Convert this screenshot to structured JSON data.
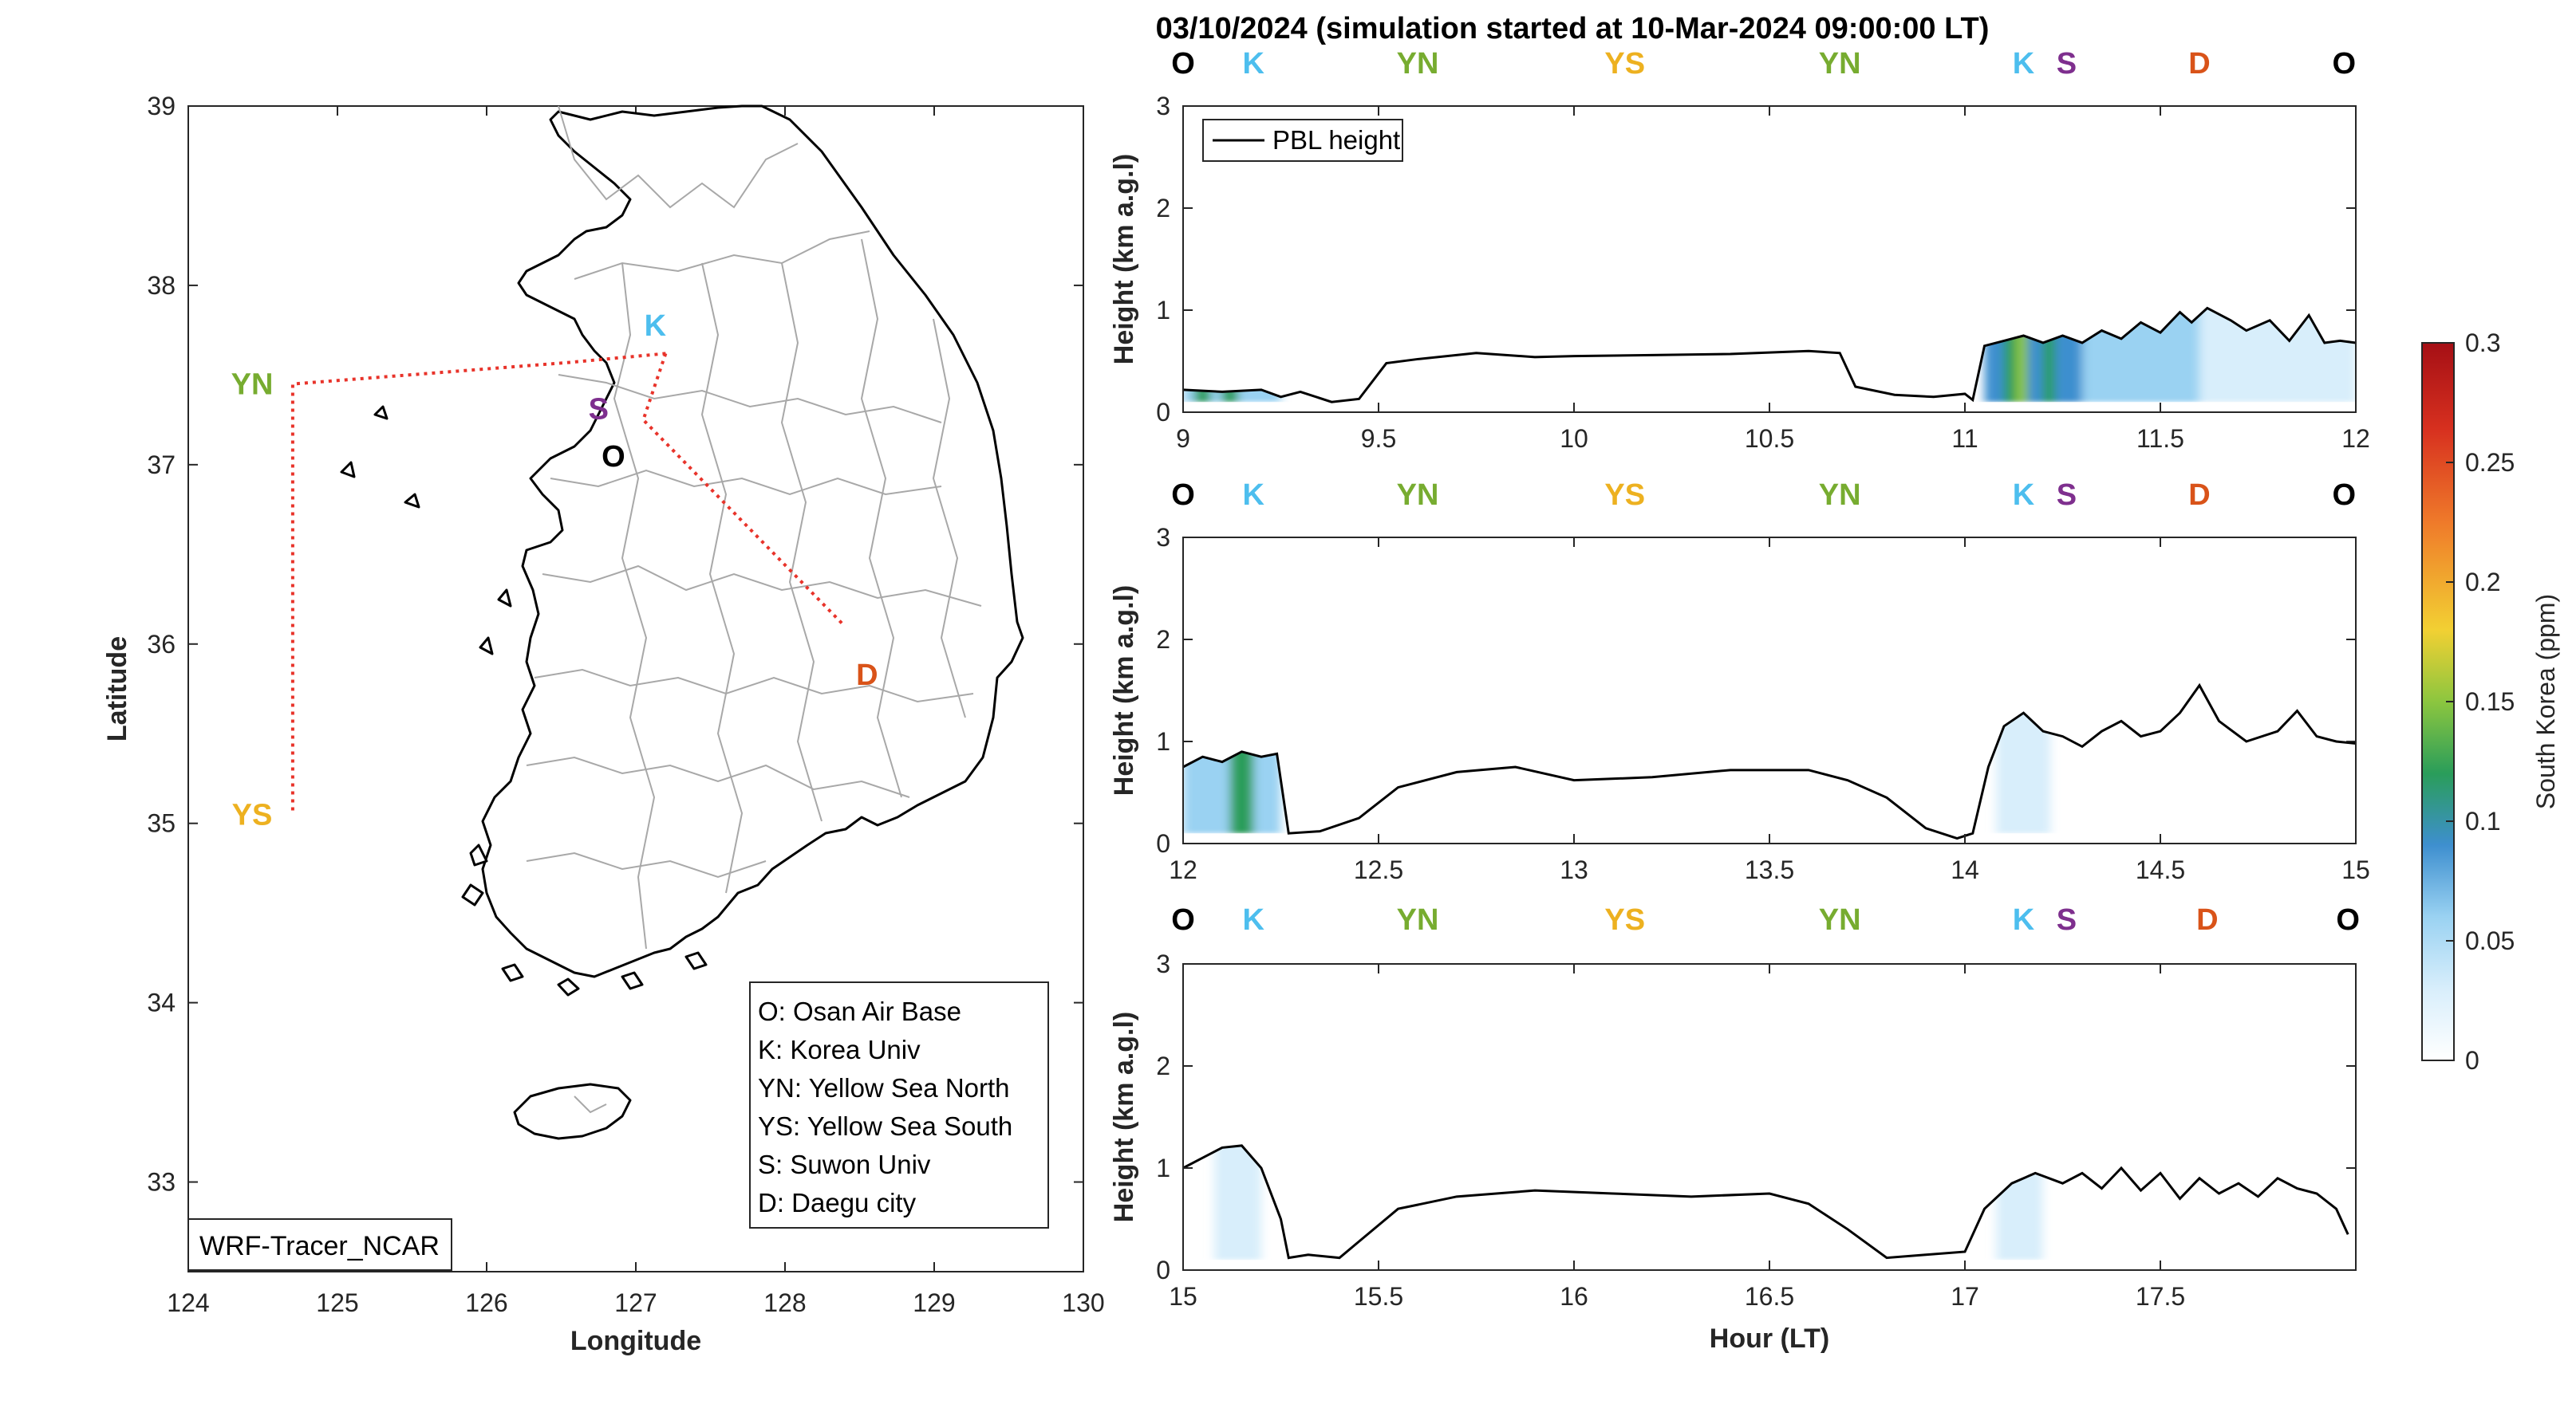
{
  "figure_title": "03/10/2024 (simulation started at 10-Mar-2024 09:00:00 LT)",
  "colors": {
    "O": "#000000",
    "K": "#4DBEEE",
    "YN": "#77AC30",
    "YS": "#EDB120",
    "S": "#7E2F8E",
    "D": "#D95319",
    "route": "#E8332A"
  },
  "chart_data": [
    {
      "type": "map",
      "xlabel": "Longitude",
      "ylabel": "Latitude",
      "xlim": [
        124,
        130
      ],
      "ylim": [
        32.5,
        39
      ],
      "xticks": [
        "124",
        "125",
        "126",
        "127",
        "128",
        "129",
        "130"
      ],
      "yticks": [
        "33",
        "34",
        "35",
        "36",
        "37",
        "38",
        "39"
      ],
      "model_label": "WRF-Tracer_NCAR",
      "stations": [
        {
          "code": "O",
          "lon": 126.85,
          "lat": 37.08
        },
        {
          "code": "K",
          "lon": 127.13,
          "lat": 37.71
        },
        {
          "code": "S",
          "lon": 126.75,
          "lat": 37.3
        },
        {
          "code": "D",
          "lon": 128.55,
          "lat": 35.87
        },
        {
          "code": "YN",
          "lon": 124.0,
          "lat": 37.45
        },
        {
          "code": "YS",
          "lon": 124.0,
          "lat": 35.05
        }
      ],
      "route": [
        [
          127.2,
          37.62
        ],
        [
          126.55,
          37.57
        ],
        [
          124.7,
          37.45
        ],
        [
          124.7,
          35.05
        ]
      ],
      "route2": [
        [
          127.2,
          37.62
        ],
        [
          127.05,
          37.25
        ],
        [
          128.4,
          36.1
        ]
      ],
      "legend": [
        "O: Osan Air Base",
        "K: Korea Univ",
        "YN: Yellow Sea North",
        "YS: Yellow Sea South",
        "S: Suwon Univ",
        "D: Daegu city"
      ]
    },
    {
      "type": "heatmap",
      "ylabel": "Height (km a.g.l)",
      "xlim": [
        9,
        12
      ],
      "ylim": [
        0,
        3
      ],
      "xticks": [
        "9",
        "9.5",
        "10",
        "10.5",
        "11",
        "11.5",
        "12"
      ],
      "yticks": [
        "0",
        "1",
        "2",
        "3"
      ],
      "legend": [
        "PBL height"
      ],
      "top_labels": [
        {
          "code": "O",
          "x": 9.0
        },
        {
          "code": "K",
          "x": 9.18
        },
        {
          "code": "YN",
          "x": 9.6
        },
        {
          "code": "YS",
          "x": 10.13
        },
        {
          "code": "YN",
          "x": 10.68
        },
        {
          "code": "K",
          "x": 11.15
        },
        {
          "code": "S",
          "x": 11.26
        },
        {
          "code": "D",
          "x": 11.6
        },
        {
          "code": "O",
          "x": 11.97
        }
      ],
      "pbl_height": [
        [
          9.0,
          0.22
        ],
        [
          9.1,
          0.2
        ],
        [
          9.2,
          0.22
        ],
        [
          9.25,
          0.15
        ],
        [
          9.3,
          0.2
        ],
        [
          9.38,
          0.1
        ],
        [
          9.45,
          0.13
        ],
        [
          9.52,
          0.48
        ],
        [
          9.6,
          0.52
        ],
        [
          9.75,
          0.58
        ],
        [
          9.9,
          0.54
        ],
        [
          10.0,
          0.55
        ],
        [
          10.2,
          0.56
        ],
        [
          10.4,
          0.57
        ],
        [
          10.6,
          0.6
        ],
        [
          10.68,
          0.58
        ],
        [
          10.72,
          0.25
        ],
        [
          10.82,
          0.17
        ],
        [
          10.92,
          0.15
        ],
        [
          11.0,
          0.18
        ],
        [
          11.02,
          0.12
        ],
        [
          11.05,
          0.65
        ],
        [
          11.1,
          0.7
        ],
        [
          11.15,
          0.75
        ],
        [
          11.2,
          0.68
        ],
        [
          11.25,
          0.75
        ],
        [
          11.3,
          0.68
        ],
        [
          11.35,
          0.8
        ],
        [
          11.4,
          0.72
        ],
        [
          11.45,
          0.88
        ],
        [
          11.5,
          0.78
        ],
        [
          11.55,
          0.98
        ],
        [
          11.58,
          0.88
        ],
        [
          11.62,
          1.02
        ],
        [
          11.68,
          0.9
        ],
        [
          11.72,
          0.8
        ],
        [
          11.78,
          0.9
        ],
        [
          11.83,
          0.7
        ],
        [
          11.88,
          0.95
        ],
        [
          11.92,
          0.68
        ],
        [
          11.96,
          0.7
        ],
        [
          12.0,
          0.68
        ]
      ]
    },
    {
      "type": "heatmap",
      "ylabel": "Height (km a.g.l)",
      "xlim": [
        12,
        15
      ],
      "ylim": [
        0,
        3
      ],
      "xticks": [
        "12",
        "12.5",
        "13",
        "13.5",
        "14",
        "14.5",
        "15"
      ],
      "yticks": [
        "0",
        "1",
        "2",
        "3"
      ],
      "top_labels": [
        {
          "code": "O",
          "x": 12.0
        },
        {
          "code": "K",
          "x": 12.18
        },
        {
          "code": "YN",
          "x": 12.6
        },
        {
          "code": "YS",
          "x": 13.13
        },
        {
          "code": "YN",
          "x": 13.68
        },
        {
          "code": "K",
          "x": 14.15
        },
        {
          "code": "S",
          "x": 14.26
        },
        {
          "code": "D",
          "x": 14.6
        },
        {
          "code": "O",
          "x": 14.97
        }
      ],
      "pbl_height": [
        [
          12.0,
          0.75
        ],
        [
          12.05,
          0.85
        ],
        [
          12.1,
          0.8
        ],
        [
          12.15,
          0.9
        ],
        [
          12.2,
          0.85
        ],
        [
          12.24,
          0.88
        ],
        [
          12.27,
          0.1
        ],
        [
          12.35,
          0.12
        ],
        [
          12.45,
          0.25
        ],
        [
          12.55,
          0.55
        ],
        [
          12.7,
          0.7
        ],
        [
          12.85,
          0.75
        ],
        [
          13.0,
          0.62
        ],
        [
          13.2,
          0.65
        ],
        [
          13.4,
          0.72
        ],
        [
          13.6,
          0.72
        ],
        [
          13.7,
          0.62
        ],
        [
          13.8,
          0.45
        ],
        [
          13.9,
          0.15
        ],
        [
          13.98,
          0.05
        ],
        [
          14.02,
          0.1
        ],
        [
          14.06,
          0.75
        ],
        [
          14.1,
          1.15
        ],
        [
          14.15,
          1.28
        ],
        [
          14.2,
          1.1
        ],
        [
          14.25,
          1.05
        ],
        [
          14.3,
          0.95
        ],
        [
          14.35,
          1.1
        ],
        [
          14.4,
          1.2
        ],
        [
          14.45,
          1.05
        ],
        [
          14.5,
          1.1
        ],
        [
          14.55,
          1.28
        ],
        [
          14.6,
          1.55
        ],
        [
          14.65,
          1.2
        ],
        [
          14.72,
          1.0
        ],
        [
          14.8,
          1.1
        ],
        [
          14.85,
          1.3
        ],
        [
          14.9,
          1.05
        ],
        [
          14.95,
          1.0
        ],
        [
          15.0,
          0.98
        ]
      ]
    },
    {
      "type": "heatmap",
      "xlabel": "Hour (LT)",
      "ylabel": "Height (km a.g.l)",
      "xlim": [
        15,
        18
      ],
      "ylim": [
        0,
        3
      ],
      "xticks": [
        "15",
        "15.5",
        "16",
        "16.5",
        "17",
        "17.5"
      ],
      "yticks": [
        "0",
        "1",
        "2",
        "3"
      ],
      "top_labels": [
        {
          "code": "O",
          "x": 15.0
        },
        {
          "code": "K",
          "x": 15.18
        },
        {
          "code": "YN",
          "x": 15.6
        },
        {
          "code": "YS",
          "x": 16.13
        },
        {
          "code": "YN",
          "x": 16.68
        },
        {
          "code": "K",
          "x": 17.15
        },
        {
          "code": "S",
          "x": 17.26
        },
        {
          "code": "D",
          "x": 17.62
        },
        {
          "code": "O",
          "x": 17.98
        }
      ],
      "pbl_height": [
        [
          15.0,
          1.0
        ],
        [
          15.05,
          1.1
        ],
        [
          15.1,
          1.2
        ],
        [
          15.15,
          1.22
        ],
        [
          15.2,
          1.0
        ],
        [
          15.25,
          0.5
        ],
        [
          15.27,
          0.12
        ],
        [
          15.32,
          0.15
        ],
        [
          15.4,
          0.12
        ],
        [
          15.45,
          0.28
        ],
        [
          15.55,
          0.6
        ],
        [
          15.7,
          0.72
        ],
        [
          15.9,
          0.78
        ],
        [
          16.1,
          0.75
        ],
        [
          16.3,
          0.72
        ],
        [
          16.5,
          0.75
        ],
        [
          16.6,
          0.65
        ],
        [
          16.7,
          0.4
        ],
        [
          16.8,
          0.12
        ],
        [
          16.9,
          0.15
        ],
        [
          17.0,
          0.18
        ],
        [
          17.05,
          0.6
        ],
        [
          17.12,
          0.85
        ],
        [
          17.18,
          0.95
        ],
        [
          17.25,
          0.85
        ],
        [
          17.3,
          0.95
        ],
        [
          17.35,
          0.8
        ],
        [
          17.4,
          1.0
        ],
        [
          17.45,
          0.78
        ],
        [
          17.5,
          0.95
        ],
        [
          17.55,
          0.7
        ],
        [
          17.6,
          0.9
        ],
        [
          17.65,
          0.75
        ],
        [
          17.7,
          0.85
        ],
        [
          17.75,
          0.72
        ],
        [
          17.8,
          0.9
        ],
        [
          17.85,
          0.8
        ],
        [
          17.9,
          0.75
        ],
        [
          17.95,
          0.6
        ],
        [
          17.98,
          0.35
        ]
      ]
    }
  ],
  "colorbar": {
    "label": "South Korea (ppm)",
    "range": [
      0,
      0.3
    ],
    "ticks": [
      "0",
      "0.05",
      "0.1",
      "0.15",
      "0.2",
      "0.25",
      "0.3"
    ]
  }
}
